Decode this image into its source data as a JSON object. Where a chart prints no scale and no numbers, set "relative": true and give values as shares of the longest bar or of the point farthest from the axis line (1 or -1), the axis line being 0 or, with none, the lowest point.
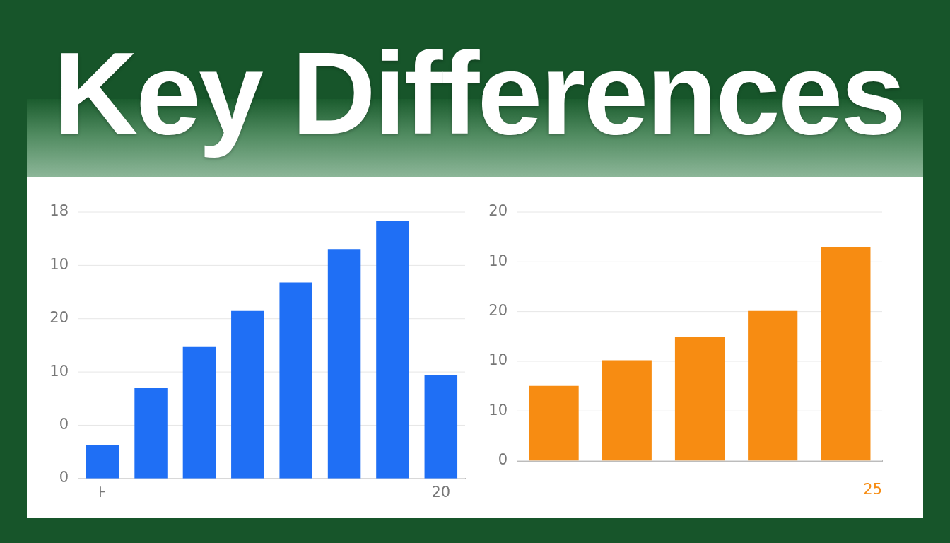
{
  "chart_data": [
    {
      "type": "other",
      "title": "Key Differences"
    },
    {
      "type": "bar",
      "relative": true,
      "categories": [
        "⊦",
        null,
        null,
        null,
        null,
        null,
        null,
        "20"
      ],
      "values": [
        0.13,
        0.35,
        0.51,
        0.65,
        0.76,
        0.89,
        1,
        0.4
      ],
      "color": "#1f6ff5",
      "grid": "y",
      "annotations": [
        "0",
        "0",
        "10",
        "20",
        "10",
        "18"
      ]
    },
    {
      "type": "bar",
      "relative": true,
      "categories": [
        null,
        null,
        null,
        null,
        null
      ],
      "values": [
        0.35,
        0.47,
        0.58,
        0.7,
        1
      ],
      "color": "#f78c12",
      "grid": "y",
      "xlabel": "25",
      "annotations": [
        "0",
        "10",
        "10",
        "20",
        "10",
        "20"
      ]
    }
  ]
}
